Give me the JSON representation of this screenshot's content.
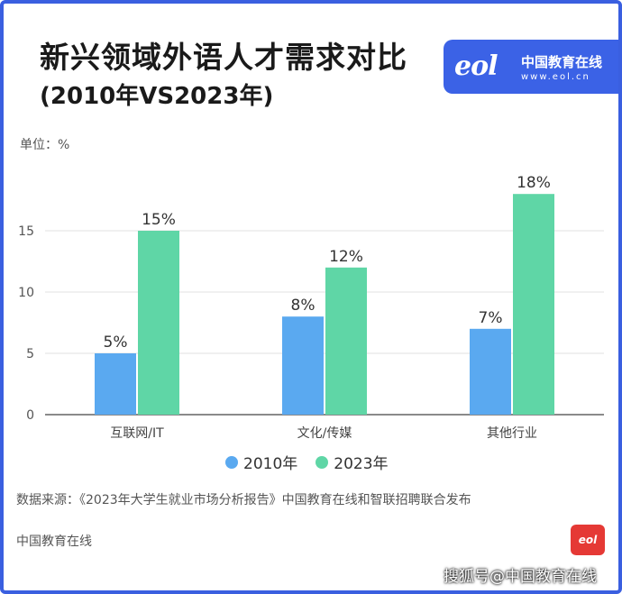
{
  "header": {
    "title": "新兴领域外语人才需求对比",
    "subtitle": "(2010年VS2023年)"
  },
  "brand": {
    "logo_text": "eol",
    "name": "中国教育在线",
    "url": "www.eol.cn"
  },
  "unit_label": "单位：%",
  "chart_data": {
    "type": "bar",
    "categories": [
      "互联网/IT",
      "文化/传媒",
      "其他行业"
    ],
    "series": [
      {
        "name": "2010年",
        "values": [
          5,
          8,
          7
        ],
        "labels": [
          "5%",
          "8%",
          "7%"
        ],
        "color": "#5aa9f0"
      },
      {
        "name": "2023年",
        "values": [
          15,
          12,
          18
        ],
        "labels": [
          "15%",
          "12%",
          "18%"
        ],
        "color": "#5fd6a6"
      }
    ],
    "ylim": [
      0,
      20
    ],
    "yticks": [
      0,
      5,
      10,
      15
    ],
    "grid": true,
    "legend": "bottom"
  },
  "source_text": "数据来源：《2023年大学生就业市场分析报告》中国教育在线和智联招聘联合发布",
  "footer": {
    "name": "中国教育在线",
    "logo_text": "eol",
    "credit": "搜狐号@中国教育在线"
  }
}
